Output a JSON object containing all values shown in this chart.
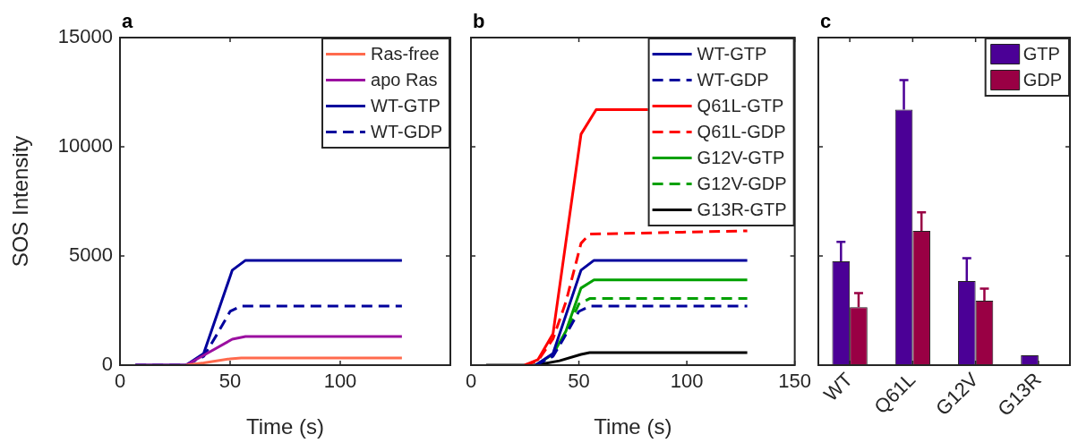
{
  "chart_data": [
    {
      "type": "line",
      "title": "a",
      "xlabel": "Time (s)",
      "ylabel": "SOS Intensity",
      "xlim": [
        0,
        150
      ],
      "xticks": [
        0,
        50,
        100
      ],
      "ylim": [
        0,
        15000
      ],
      "yticks": [
        0,
        5000,
        10000,
        15000
      ],
      "legend": "top right",
      "line_style": "solid",
      "series": [
        {
          "name": "Ras-free",
          "color": "#ff6a4d",
          "x": [
            30,
            38,
            50,
            55,
            128
          ],
          "values": [
            0,
            100,
            290,
            330,
            330
          ]
        },
        {
          "name": "apo Ras",
          "color": "#9b0fa0",
          "x": [
            7,
            30,
            38,
            51,
            57,
            128
          ],
          "values": [
            0,
            0,
            450,
            1190,
            1310,
            1310
          ]
        },
        {
          "name": "WT-GTP",
          "color": "#00009c",
          "x": [
            7,
            30,
            38,
            51,
            57,
            128
          ],
          "values": [
            0,
            0,
            530,
            4350,
            4800,
            4800
          ]
        },
        {
          "name": "WT-GDP",
          "color": "#00009c",
          "line_style": "dashed",
          "x": [
            7,
            30,
            38,
            44,
            50,
            55,
            128
          ],
          "values": [
            0,
            0,
            400,
            1400,
            2460,
            2700,
            2700
          ]
        }
      ]
    },
    {
      "type": "line",
      "title": "b",
      "xlabel": "Time (s)",
      "xlim": [
        0,
        150
      ],
      "xticks": [
        0,
        50,
        100,
        150
      ],
      "ylim": [
        0,
        15000
      ],
      "yticks": [
        0,
        5000,
        10000,
        15000
      ],
      "tick_labels": "x",
      "legend": "top right",
      "line_style": "solid",
      "series": [
        {
          "name": "WT-GTP",
          "color": "#00009c",
          "x": [
            30,
            38,
            51,
            57,
            128
          ],
          "values": [
            0,
            530,
            4350,
            4800,
            4800
          ]
        },
        {
          "name": "WT-GDP",
          "color": "#00009c",
          "line_style": "dashed",
          "x": [
            30,
            38,
            44,
            50,
            55,
            128
          ],
          "values": [
            0,
            400,
            1400,
            2460,
            2700,
            2700
          ]
        },
        {
          "name": "Q61L-GTP",
          "color": "#ff0000",
          "x": [
            25,
            31,
            38,
            51,
            58,
            82
          ],
          "values": [
            0,
            250,
            1430,
            10580,
            11700,
            11700
          ]
        },
        {
          "name": "Q61L-GDP",
          "color": "#ff0000",
          "line_style": "dashed",
          "x": [
            25,
            31,
            38,
            44,
            51,
            55,
            128
          ],
          "values": [
            0,
            200,
            1200,
            2900,
            5580,
            6000,
            6150
          ]
        },
        {
          "name": "G12V-GTP",
          "color": "#00a000",
          "x": [
            30,
            38,
            44,
            51,
            57,
            128
          ],
          "values": [
            0,
            500,
            1560,
            3530,
            3900,
            3900
          ]
        },
        {
          "name": "G12V-GDP",
          "color": "#00a000",
          "line_style": "dashed",
          "x": [
            30,
            38,
            44,
            50,
            55,
            128
          ],
          "values": [
            0,
            450,
            1500,
            2800,
            3050,
            3050
          ]
        },
        {
          "name": "G13R-GTP",
          "color": "#000000",
          "x": [
            7,
            30,
            41,
            51,
            55,
            128
          ],
          "values": [
            0,
            0,
            200,
            490,
            570,
            570
          ]
        }
      ]
    },
    {
      "type": "bar",
      "title": "c",
      "categories": [
        "WT",
        "Q61L",
        "G12V",
        "G13R"
      ],
      "ylim": [
        0,
        15000
      ],
      "yticks": [
        0,
        5000,
        10000,
        15000
      ],
      "tick_labels": "x",
      "legend": "top right",
      "series": [
        {
          "name": "GTP",
          "color": "#4b0096",
          "values": [
            4750,
            11700,
            3850,
            450
          ],
          "errors": [
            [
              4750,
              5650
            ],
            [
              11700,
              13050
            ],
            [
              3850,
              4900
            ],
            null
          ]
        },
        {
          "name": "GDP",
          "color": "#990044",
          "values": [
            2650,
            6150,
            2950,
            0
          ],
          "errors": [
            [
              2650,
              3300
            ],
            [
              6150,
              7000
            ],
            [
              2950,
              3500
            ],
            null
          ]
        }
      ]
    }
  ]
}
